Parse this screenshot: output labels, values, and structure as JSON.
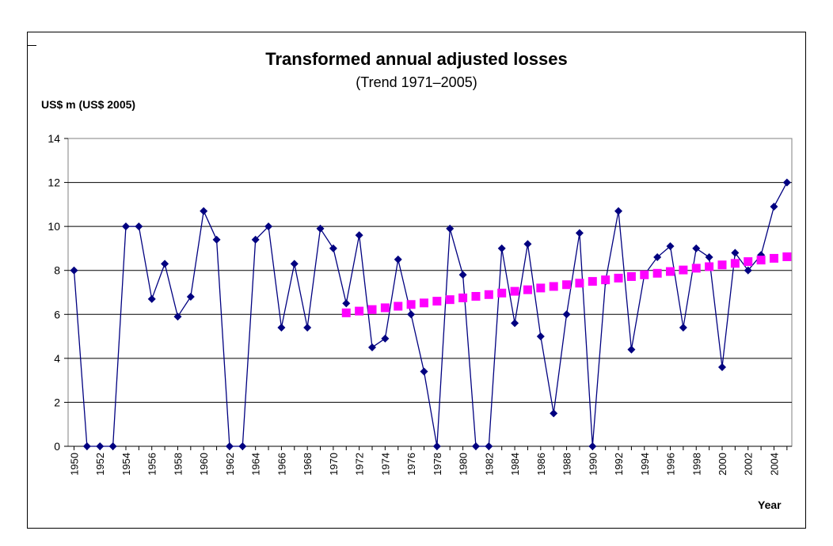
{
  "chart_data": {
    "type": "line",
    "title": "Transformed annual adjusted losses",
    "subtitle": "(Trend 1971–2005)",
    "ylabel": "US$ m (US$ 2005)",
    "xlabel": "Year",
    "ylim": [
      0,
      14
    ],
    "yticks": [
      0,
      2,
      4,
      6,
      8,
      10,
      12,
      14
    ],
    "xlim": [
      1950,
      2005
    ],
    "xticks": [
      1950,
      1952,
      1954,
      1956,
      1958,
      1960,
      1962,
      1964,
      1966,
      1968,
      1970,
      1972,
      1974,
      1976,
      1978,
      1980,
      1982,
      1984,
      1986,
      1988,
      1990,
      1992,
      1994,
      1996,
      1998,
      2000,
      2002,
      2004
    ],
    "grid": true,
    "colors": {
      "series": "#000080",
      "trend": "#ff00ff"
    },
    "series": [
      {
        "x": [
          1950,
          1951,
          1952,
          1953,
          1954,
          1955,
          1956,
          1957,
          1958,
          1959,
          1960,
          1961,
          1962,
          1963,
          1964,
          1965,
          1966,
          1967,
          1968,
          1969,
          1970,
          1971,
          1972,
          1973,
          1974,
          1975,
          1976,
          1977,
          1978,
          1979,
          1980,
          1981,
          1982,
          1983,
          1984,
          1985,
          1986,
          1987,
          1988,
          1989,
          1990,
          1991,
          1992,
          1993,
          1994,
          1995,
          1996,
          1997,
          1998,
          1999,
          2000,
          2001,
          2002,
          2003,
          2004,
          2005
        ],
        "values": [
          8.0,
          0,
          0,
          0,
          10.0,
          10.0,
          6.7,
          8.3,
          5.9,
          6.8,
          10.7,
          9.4,
          0,
          0,
          9.4,
          10.0,
          5.4,
          8.3,
          5.4,
          9.9,
          9.0,
          6.5,
          9.6,
          4.5,
          4.9,
          8.5,
          6.0,
          3.4,
          0,
          9.9,
          7.8,
          0,
          0,
          9.0,
          5.6,
          9.2,
          5.0,
          1.5,
          6.0,
          9.7,
          0,
          7.5,
          10.7,
          4.4,
          7.8,
          8.6,
          9.1,
          5.4,
          9.0,
          8.6,
          3.6,
          8.8,
          8.0,
          8.7,
          10.9,
          12.0
        ]
      },
      {
        "x": [
          1971,
          1972,
          1973,
          1974,
          1975,
          1976,
          1977,
          1978,
          1979,
          1980,
          1981,
          1982,
          1983,
          1984,
          1985,
          1986,
          1987,
          1988,
          1989,
          1990,
          1991,
          1992,
          1993,
          1994,
          1995,
          1996,
          1997,
          1998,
          1999,
          2000,
          2001,
          2002,
          2003,
          2004,
          2005
        ],
        "values": [
          6.07,
          6.15,
          6.22,
          6.3,
          6.37,
          6.45,
          6.52,
          6.6,
          6.67,
          6.75,
          6.82,
          6.9,
          6.97,
          7.05,
          7.12,
          7.2,
          7.27,
          7.35,
          7.42,
          7.5,
          7.57,
          7.65,
          7.72,
          7.8,
          7.87,
          7.95,
          8.02,
          8.1,
          8.17,
          8.25,
          8.32,
          8.4,
          8.47,
          8.55,
          8.62
        ]
      }
    ]
  }
}
